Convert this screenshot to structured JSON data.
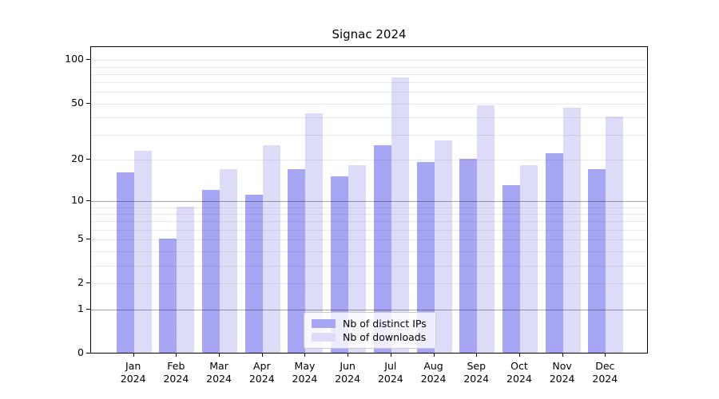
{
  "title": "Signac 2024",
  "colors": {
    "ips_bar": "#a6a6f4",
    "downloads_bar": "#dcdcf9",
    "grid_minor": "rgba(0,0,0,0.08)",
    "grid_major": "rgba(0,0,0,0.35)",
    "axis": "#000000"
  },
  "legend": {
    "items": [
      {
        "label": "Nb of distinct IPs",
        "series": "ips"
      },
      {
        "label": "Nb of downloads",
        "series": "downloads"
      }
    ]
  },
  "y_axis": {
    "ticks": [
      {
        "label": "100",
        "value": 100
      },
      {
        "label": "50",
        "value": 50
      },
      {
        "label": "20",
        "value": 20
      },
      {
        "label": "10",
        "value": 10
      },
      {
        "label": "5",
        "value": 5
      },
      {
        "label": "2",
        "value": 2
      },
      {
        "label": "1",
        "value": 1
      },
      {
        "label": "0",
        "value": 0
      }
    ],
    "minor_gridlines": [
      2,
      3,
      4,
      5,
      6,
      7,
      8,
      9,
      20,
      30,
      40,
      50,
      60,
      70,
      80,
      90,
      100
    ],
    "major_gridlines": [
      1,
      10
    ]
  },
  "chart_data": {
    "type": "bar",
    "title": "Signac 2024",
    "categories": [
      "Jan 2024",
      "Feb 2024",
      "Mar 2024",
      "Apr 2024",
      "May 2024",
      "Jun 2024",
      "Jul 2024",
      "Aug 2024",
      "Sep 2024",
      "Oct 2024",
      "Nov 2024",
      "Dec 2024"
    ],
    "series": [
      {
        "name": "Nb of distinct IPs",
        "values": [
          16,
          5,
          12,
          11,
          17,
          15,
          25,
          19,
          20,
          13,
          22,
          17
        ]
      },
      {
        "name": "Nb of downloads",
        "values": [
          23,
          9,
          17,
          25,
          42,
          18,
          75,
          27,
          48,
          18,
          46,
          40
        ]
      }
    ],
    "yscale": "symlog (position = log10(1+value))",
    "ylim": [
      0,
      120
    ],
    "grid": "on, drawn over bars",
    "legend_position": "lower center, inside plot"
  }
}
